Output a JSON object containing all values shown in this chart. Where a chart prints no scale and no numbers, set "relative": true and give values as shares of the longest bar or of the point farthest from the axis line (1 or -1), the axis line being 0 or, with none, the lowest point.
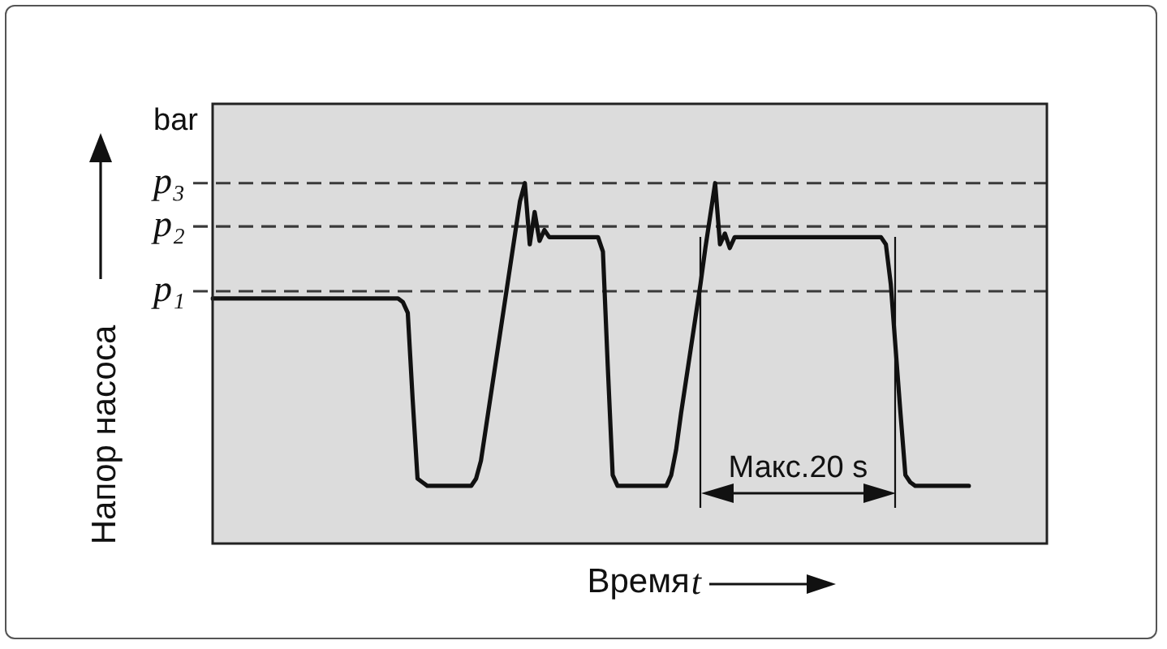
{
  "chart_data": {
    "type": "line",
    "ylabel": "Напор насоса",
    "xlabel": "Времяt",
    "relative": true,
    "marker": "none",
    "line_style": "solid",
    "color": "#111111",
    "categories": [
      null,
      null,
      null,
      null,
      null,
      null,
      null,
      null,
      null,
      null,
      null,
      null,
      null,
      null,
      null,
      null,
      null,
      null,
      null,
      null,
      null,
      null,
      null,
      null,
      null,
      null,
      null,
      null,
      null,
      null,
      null,
      null,
      null,
      null,
      null,
      null,
      null,
      null,
      null,
      null,
      null,
      null,
      null,
      null,
      null,
      null,
      null,
      null,
      null,
      null,
      null,
      null,
      null,
      null,
      null,
      null,
      null,
      null,
      null,
      null,
      null,
      null,
      null,
      null,
      null,
      null,
      null,
      null,
      null,
      null,
      null,
      null,
      null,
      null,
      null,
      null,
      null,
      null,
      null,
      null,
      null,
      null,
      null,
      null,
      null,
      null,
      null,
      null,
      null,
      null,
      null,
      null,
      null,
      null,
      null,
      null,
      null,
      null,
      null,
      null,
      null,
      null,
      null,
      null,
      null,
      null,
      null,
      null,
      null,
      null,
      null,
      null,
      null,
      null,
      null,
      null,
      null,
      null,
      null,
      null,
      null,
      null,
      null,
      null,
      null,
      null,
      null,
      null,
      null,
      null,
      null,
      null,
      null,
      null,
      null,
      null,
      null,
      null,
      null,
      null,
      null,
      null,
      null,
      null,
      null,
      null,
      null,
      null,
      null,
      null,
      null,
      null,
      null,
      null,
      null,
      null,
      null,
      null,
      null,
      null,
      null,
      null,
      null,
      null,
      null,
      null,
      null,
      null,
      null,
      null,
      null,
      null
    ],
    "values": [
      0.68,
      0.68,
      0.68,
      0.68,
      0.68,
      0.68,
      0.68,
      0.68,
      0.68,
      0.68,
      0.68,
      0.68,
      0.68,
      0.68,
      0.68,
      0.68,
      0.68,
      0.68,
      0.68,
      0.68,
      0.68,
      0.68,
      0.68,
      0.68,
      0.68,
      0.68,
      0.68,
      0.68,
      0.68,
      0.68,
      0.68,
      0.68,
      0.68,
      0.68,
      0.68,
      0.68,
      0.68,
      0.68,
      0.68,
      0.67,
      0.64,
      0.4,
      0.18,
      0.17,
      0.16,
      0.16,
      0.16,
      0.16,
      0.16,
      0.16,
      0.16,
      0.16,
      0.16,
      0.16,
      0.18,
      0.23,
      0.32,
      0.41,
      0.5,
      0.59,
      0.68,
      0.77,
      0.86,
      0.95,
      1,
      0.83,
      0.92,
      0.84,
      0.87,
      0.85,
      0.85,
      0.85,
      0.85,
      0.85,
      0.85,
      0.85,
      0.85,
      0.85,
      0.85,
      0.85,
      0.81,
      0.49,
      0.19,
      0.16,
      0.16,
      0.16,
      0.16,
      0.16,
      0.16,
      0.16,
      0.16,
      0.16,
      0.16,
      0.16,
      0.19,
      0.26,
      0.36,
      0.45,
      0.54,
      0.63,
      0.72,
      0.82,
      0.91,
      1,
      0.83,
      0.86,
      0.82,
      0.85,
      0.85,
      0.85,
      0.85,
      0.85,
      0.85,
      0.85,
      0.85,
      0.85,
      0.85,
      0.85,
      0.85,
      0.85,
      0.85,
      0.85,
      0.85,
      0.85,
      0.85,
      0.85,
      0.85,
      0.85,
      0.85,
      0.85,
      0.85,
      0.85,
      0.85,
      0.85,
      0.85,
      0.85,
      0.85,
      0.85,
      0.83,
      0.72,
      0.54,
      0.36,
      0.19,
      0.17,
      0.16,
      0.16,
      0.16,
      0.16,
      0.16,
      0.16,
      0.16,
      0.16,
      0.16,
      0.16,
      0.16,
      0.16,
      null,
      null,
      null,
      null,
      null,
      null,
      null,
      null,
      null,
      null,
      null,
      null,
      null,
      null,
      null,
      null
    ],
    "ref_lines": [
      {
        "axis": "y",
        "value": 1,
        "label": "p₃",
        "color": "#3a3a3a",
        "line_style": "dashed"
      },
      {
        "axis": "y",
        "value": 0.88,
        "label": "p₂",
        "color": "#3a3a3a",
        "line_style": "dashed"
      },
      {
        "axis": "y",
        "value": 0.7,
        "label": "p₁",
        "color": "#3a3a3a",
        "line_style": "dashed"
      }
    ],
    "annotations": [
      "bar",
      "Макс.20 s"
    ]
  }
}
